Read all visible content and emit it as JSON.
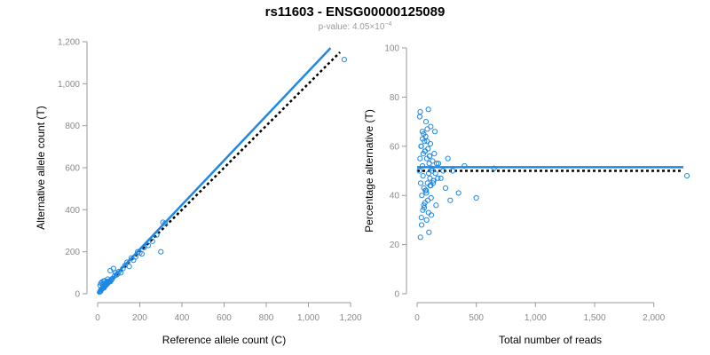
{
  "figure": {
    "title": "rs11603 - ENSG00000125089",
    "subtitle": "p-value: 4.05×10",
    "subtitle_exp": "−4"
  },
  "colors": {
    "points": "#1e88e5",
    "fit_line": "#1e88e5",
    "reference_line": "#000000",
    "axis": "#999999",
    "tick_text": "#8a8a8a"
  },
  "chart_data": [
    {
      "type": "scatter",
      "xlabel": "Reference allele count (C)",
      "ylabel": "Alternative allele count (T)",
      "xlim": [
        0,
        1200
      ],
      "ylim": [
        0,
        1200
      ],
      "xticks": [
        0,
        200,
        400,
        600,
        800,
        1000,
        1200
      ],
      "xtick_labels": [
        "0",
        "200",
        "400",
        "600",
        "800",
        "1,000",
        "1,200"
      ],
      "yticks": [
        0,
        200,
        400,
        600,
        800,
        1000,
        1200
      ],
      "ytick_labels": [
        "0",
        "200",
        "400",
        "600",
        "800",
        "1,000",
        "1,200"
      ],
      "grid": false,
      "fit_line": {
        "x": [
          0,
          1105
        ],
        "y": [
          0,
          1170
        ]
      },
      "reference_line": {
        "x": [
          0,
          1150
        ],
        "y": [
          0,
          1150
        ]
      },
      "points": {
        "x": [
          10,
          14,
          18,
          22,
          26,
          30,
          34,
          38,
          42,
          46,
          50,
          55,
          60,
          65,
          12,
          16,
          20,
          24,
          28,
          32,
          36,
          40,
          44,
          48,
          15,
          19,
          23,
          27,
          31,
          35,
          39,
          43,
          47,
          52,
          58,
          64,
          70,
          80,
          90,
          100,
          110,
          120,
          130,
          140,
          150,
          160,
          170,
          180,
          190,
          200,
          210,
          220,
          240,
          260,
          280,
          300,
          310,
          320,
          1170,
          60,
          75,
          85,
          95
        ],
        "y": [
          8,
          12,
          20,
          25,
          30,
          28,
          35,
          40,
          44,
          48,
          55,
          60,
          58,
          65,
          40,
          50,
          55,
          45,
          60,
          62,
          50,
          45,
          58,
          70,
          18,
          22,
          26,
          30,
          34,
          38,
          42,
          46,
          50,
          55,
          62,
          66,
          72,
          85,
          90,
          105,
          100,
          120,
          135,
          150,
          130,
          170,
          160,
          175,
          200,
          195,
          190,
          220,
          230,
          250,
          280,
          200,
          340,
          335,
          1115,
          110,
          120,
          100,
          95
        ]
      }
    },
    {
      "type": "scatter",
      "xlabel": "Total number of reads",
      "ylabel": "Percentage alternative (T)",
      "xlim": [
        0,
        2250
      ],
      "ylim": [
        0,
        100
      ],
      "xticks": [
        0,
        500,
        1000,
        1500,
        2000
      ],
      "xtick_labels": [
        "0",
        "500",
        "1,000",
        "1,500",
        "2,000"
      ],
      "yticks": [
        0,
        20,
        40,
        60,
        80,
        100
      ],
      "ytick_labels": [
        "0",
        "20",
        "40",
        "60",
        "80",
        "100"
      ],
      "grid": false,
      "fit_line": {
        "x": [
          0,
          2250
        ],
        "y": [
          51.5,
          51.5
        ]
      },
      "reference_line": {
        "x": [
          0,
          2250
        ],
        "y": [
          50,
          50
        ]
      },
      "points": {
        "x": [
          20,
          25,
          30,
          35,
          40,
          45,
          50,
          55,
          60,
          65,
          70,
          75,
          80,
          85,
          90,
          95,
          100,
          105,
          110,
          115,
          120,
          130,
          140,
          150,
          160,
          180,
          200,
          220,
          240,
          260,
          280,
          300,
          350,
          400,
          500,
          650,
          2280,
          22,
          28,
          33,
          38,
          44,
          48,
          52,
          58,
          62,
          66,
          72,
          78,
          82,
          88,
          92,
          98,
          102,
          108,
          112,
          118,
          124,
          135,
          145,
          155,
          165,
          175,
          26,
          36,
          46,
          56,
          68,
          76,
          86,
          96,
          106,
          116,
          126,
          136
        ],
        "y": [
          50,
          55,
          45,
          60,
          40,
          52,
          48,
          65,
          35,
          58,
          42,
          70,
          30,
          62,
          38,
          75,
          25,
          56,
          44,
          68,
          32,
          54,
          46,
          66,
          36,
          53,
          47,
          50,
          43,
          55,
          38,
          50,
          41,
          52,
          39,
          51,
          48,
          72,
          23,
          60,
          28,
          66,
          34,
          57,
          43,
          62,
          37,
          64,
          41,
          55,
          45,
          59,
          49,
          53,
          47,
          61,
          39,
          51,
          45,
          57,
          49,
          53,
          47,
          74,
          31,
          63,
          36,
          58,
          42,
          67,
          33,
          56,
          44,
          50,
          46
        ]
      }
    }
  ]
}
